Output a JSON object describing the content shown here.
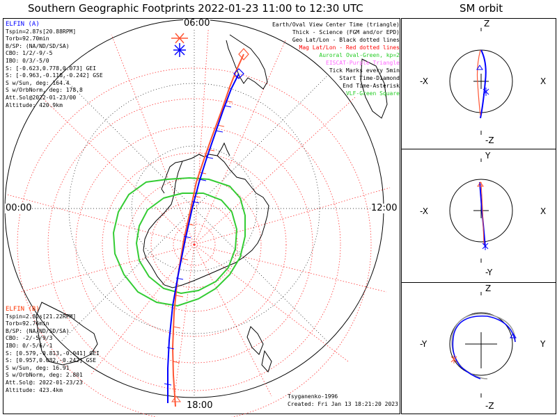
{
  "header": {
    "main_title": "Southern Geographic Footprints 2022-01-23 11:00 to 12:30 UTC",
    "orbit_title": "SM orbit"
  },
  "map": {
    "hour_labels": {
      "top": "06:00",
      "left": "00:00",
      "right": "12:00",
      "bottom": "18:00"
    },
    "legend": [
      {
        "text": "Earth/Oval View Center Time (triangle)",
        "color": "#000000"
      },
      {
        "text": "Thick - Science (FGM and/or EPD)",
        "color": "#000000"
      },
      {
        "text": "Geo Lat/Lon - Black dotted lines",
        "color": "#000000"
      },
      {
        "text": "Mag Lat/Lon - Red dotted lines",
        "color": "#ff0000"
      },
      {
        "text": "Auroral Oval-Green, kp=2",
        "color": "#22cc22"
      },
      {
        "text": "EISCAT-Purple Triangle",
        "color": "#ff66ff"
      },
      {
        "text": "Tick Marks every 5min",
        "color": "#000000"
      },
      {
        "text": "Start Time-Diamond",
        "color": "#000000"
      },
      {
        "text": "End Time-Asterisk",
        "color": "#000000"
      },
      {
        "text": "VLF-Green Square",
        "color": "#22cc22"
      }
    ],
    "elfin_a": {
      "title": "ELFIN (A)",
      "color": "#0000ff",
      "lines": [
        "Tspin=2.87s[20.88RPM]",
        "Torb=92.70min",
        "B/SP: (NA/ND/SD/SA)",
        "CBO: 1/2/-9/-5",
        "IBO: 0/3/-5/0",
        "S: [-0.623,0.778,0.073] GEI",
        "S: [-0.963,-0.110,-0.242] GSE",
        "S w/Sun, deg: 164.4",
        "S w/OrbNorm, deg: 178.8",
        "Att.Sol@2022-01-23/00",
        "Altitude: 420.9km"
      ]
    },
    "elfin_b": {
      "title": "ELFIN (B)",
      "color": "#ff3300",
      "lines": [
        "Tspin=2.82s[21.22RPM]",
        "Torb=92.76min",
        "B/SP: (NA/ND/SD/SA)",
        "CBO: -2/-5/9/3",
        "IBO: 0/-5/6/-1",
        "S: [0.579,-0.813,-0.041] GEI",
        "S: [0.957,0.082,-0.242] GSE",
        "S w/Sun, deg: 16.91",
        "S w/OrbNorm, deg: 2.801",
        "Att.Sol@: 2022-01-23/23",
        "Altitude: 423.4km"
      ]
    },
    "credits": [
      "Tsyganenko-1996",
      "Created: Fri Jan 13 18:21:20 2023"
    ]
  },
  "orbit_panels": [
    {
      "top": "Z",
      "bottom": "-Z",
      "left": "-X",
      "right": "X"
    },
    {
      "top": "Y",
      "bottom": "-Y",
      "left": "-X",
      "right": "X"
    },
    {
      "top": "Z",
      "bottom": "-Z",
      "left": "-Y",
      "right": "Y"
    }
  ],
  "colors": {
    "elfin_a": "#0000ff",
    "elfin_b": "#ff5533",
    "geo_grid": "#000000",
    "mag_grid": "#ff0000",
    "auroral_oval": "#33cc33"
  }
}
